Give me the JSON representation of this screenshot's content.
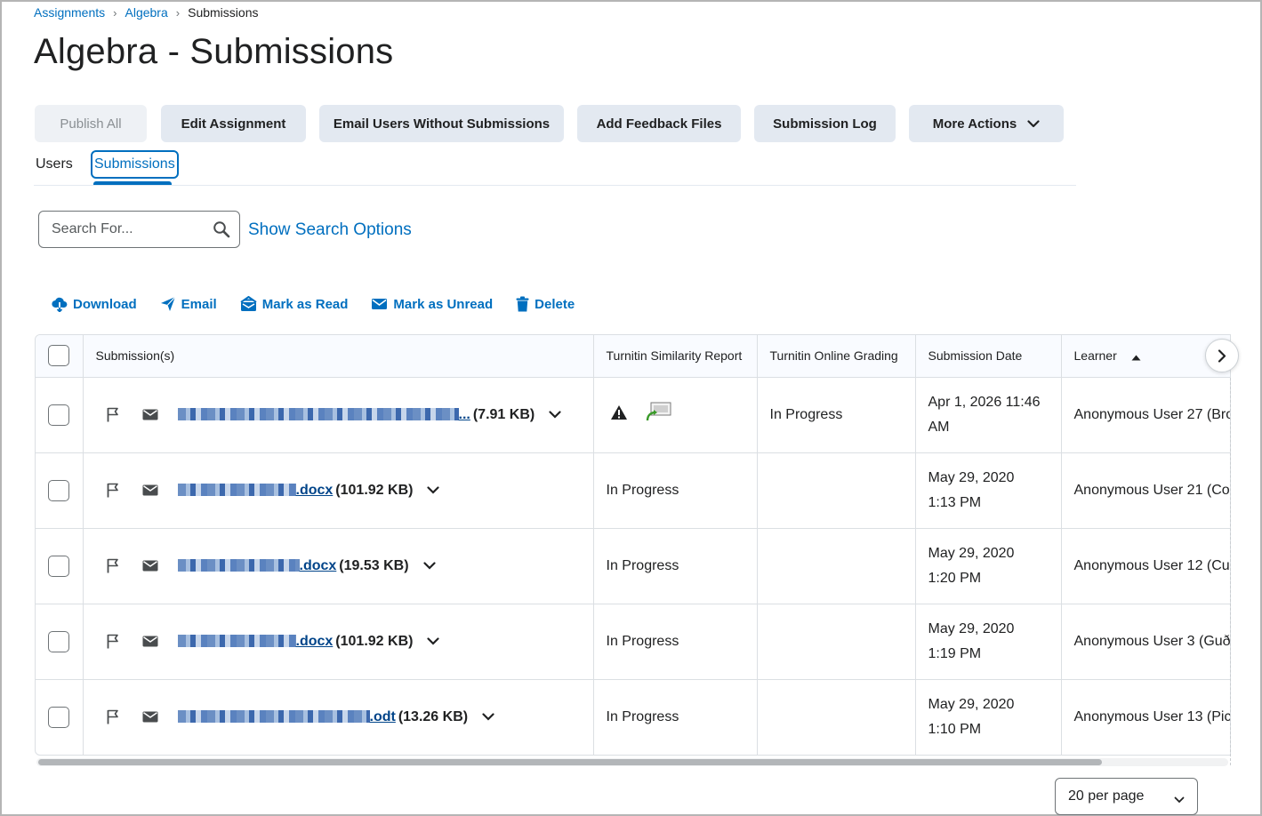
{
  "breadcrumb": {
    "item1": "Assignments",
    "item2": "Algebra",
    "current": "Submissions"
  },
  "page_title": "Algebra - Submissions",
  "toolbar": {
    "publish_all": "Publish All",
    "edit_assignment": "Edit Assignment",
    "email_users": "Email Users Without Submissions",
    "add_feedback": "Add Feedback Files",
    "submission_log": "Submission Log",
    "more_actions": "More Actions"
  },
  "tabs": {
    "users": "Users",
    "submissions": "Submissions"
  },
  "search": {
    "placeholder": "Search For...",
    "show_options": "Show Search Options"
  },
  "actions": {
    "download": "Download",
    "email": "Email",
    "mark_read": "Mark as Read",
    "mark_unread": "Mark as Unread",
    "delete": "Delete"
  },
  "table": {
    "headers": {
      "submissions": "Submission(s)",
      "similarity": "Turnitin Similarity Report",
      "online_grading": "Turnitin Online Grading",
      "date": "Submission Date",
      "learner": "Learner"
    },
    "rows": [
      {
        "ext": "...",
        "size": "(7.91 KB)",
        "similarity": "",
        "grading": "In Progress",
        "date1": "Apr 1, 2026 11:46",
        "date2": "AM",
        "learner": "Anonymous User 27 (Bro"
      },
      {
        "ext": ".docx",
        "size": "(101.92 KB)",
        "similarity": "In Progress",
        "grading": "",
        "date1": "May 29, 2020",
        "date2": "1:13 PM",
        "learner": "Anonymous User 21 (Co"
      },
      {
        "ext": ".docx",
        "size": "(19.53 KB)",
        "similarity": "In Progress",
        "grading": "",
        "date1": "May 29, 2020",
        "date2": "1:20 PM",
        "learner": "Anonymous User 12 (Cu"
      },
      {
        "ext": ".docx",
        "size": "(101.92 KB)",
        "similarity": "In Progress",
        "grading": "",
        "date1": "May 29, 2020",
        "date2": "1:19 PM",
        "learner": "Anonymous User 3 (Guð"
      },
      {
        "ext": ".odt",
        "size": "(13.26 KB)",
        "similarity": "In Progress",
        "grading": "",
        "date1": "May 29, 2020",
        "date2": "1:10 PM",
        "learner": "Anonymous User 13 (Pic"
      }
    ]
  },
  "pagination": {
    "per_page": "20 per page"
  }
}
